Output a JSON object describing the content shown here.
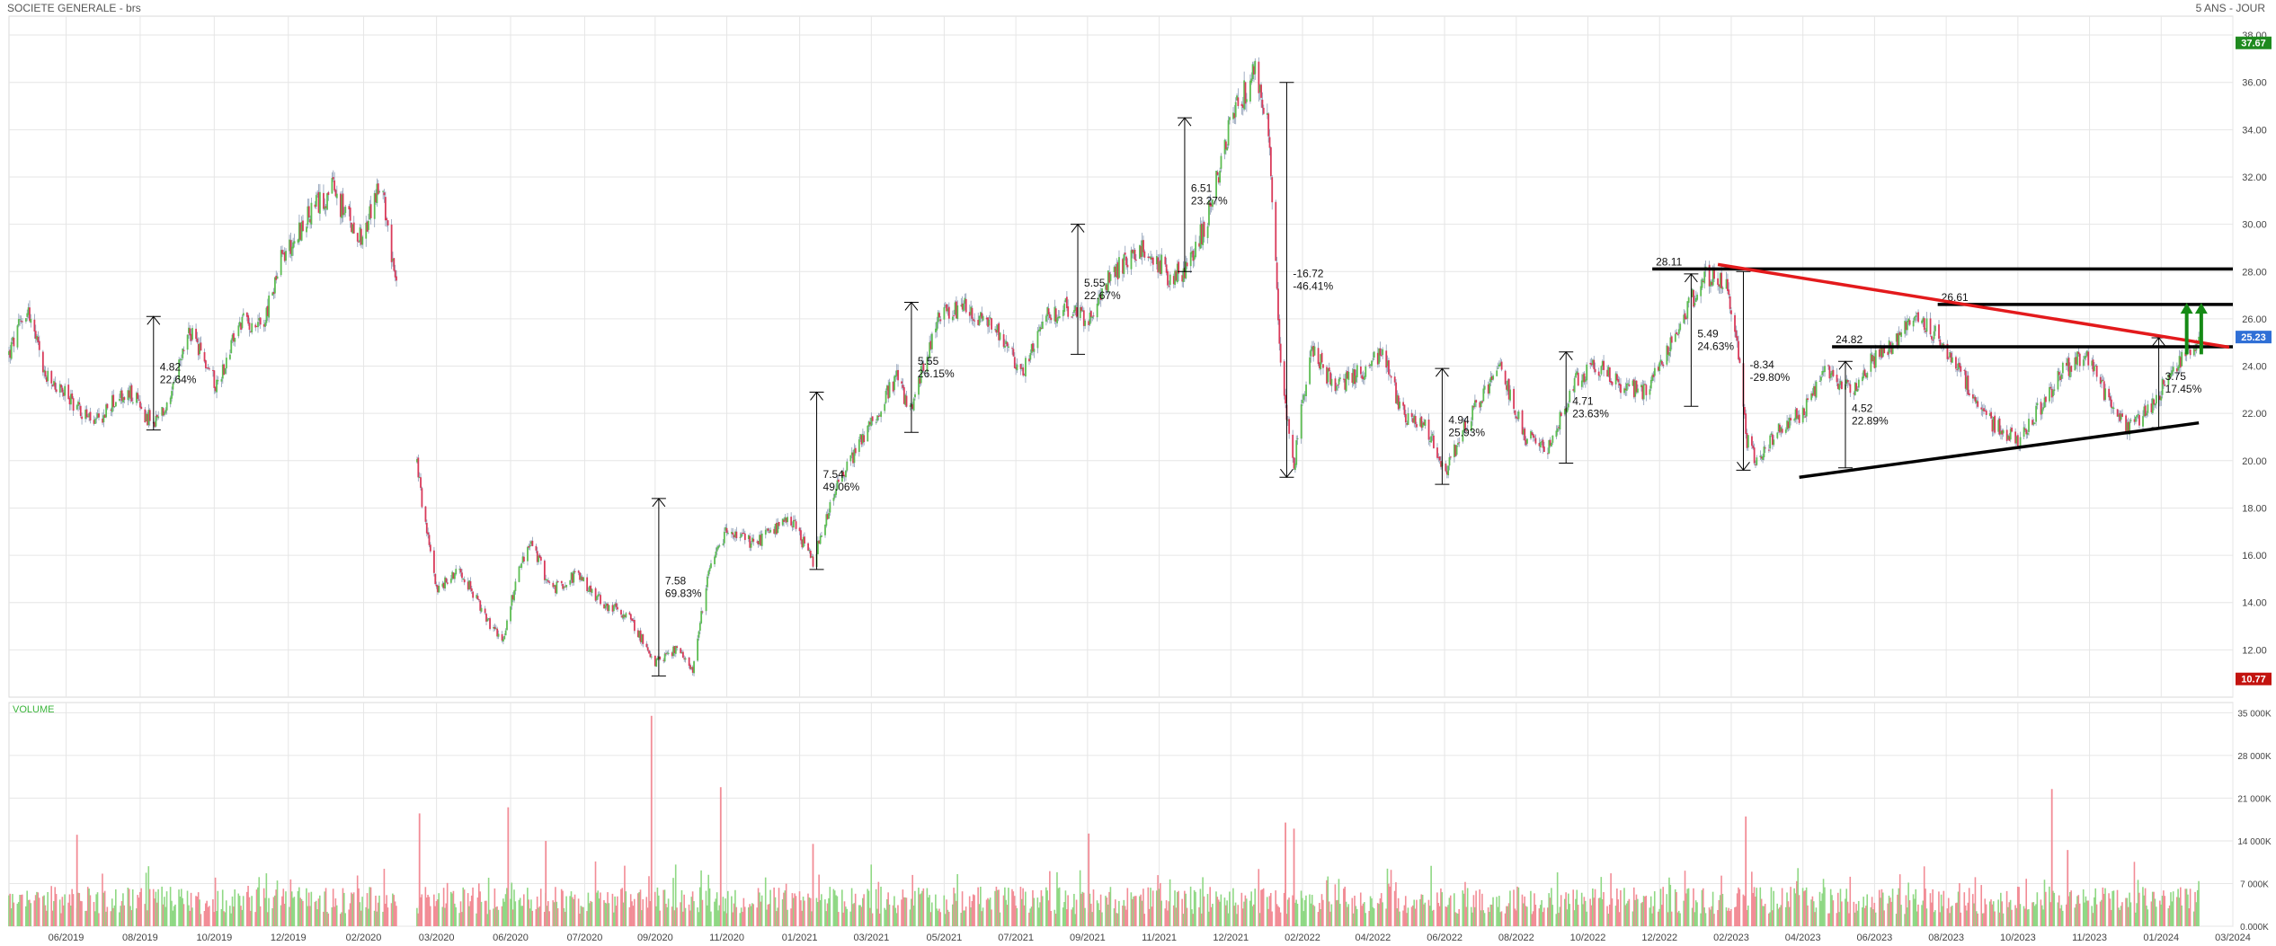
{
  "header": {
    "title": "SOCIETE GENERALE - brs",
    "period": "5 ANS - JOUR"
  },
  "colors": {
    "up": "#5cbd52",
    "down": "#d93a5a",
    "volume_up": "#8fd884",
    "volume_down": "#f28c96",
    "grid": "#e6e6e6",
    "trend_red": "#e31a1c",
    "trend_black": "#000000",
    "last_price_bg": "#2f6fd6",
    "high_bg": "#1f8a1f",
    "low_bg": "#c3130f",
    "arrow_green": "#158a15",
    "volume_label": "#3bb53b"
  },
  "chart_data": [
    {
      "type": "candlestick",
      "title": "SOCIETE GENERALE - brs",
      "period": "5 ANS - JOUR",
      "x_range": [
        "2019-04-15",
        "2024-03-22"
      ],
      "ylim": [
        10,
        38.8
      ],
      "y_ticks": [
        "12.00",
        "14.00",
        "16.00",
        "18.00",
        "20.00",
        "22.00",
        "24.00",
        "26.00",
        "28.00",
        "30.00",
        "32.00",
        "34.00",
        "36.00",
        "38.00"
      ],
      "x_ticks": [
        {
          "date": "2019-06-01",
          "label": "06/2019"
        },
        {
          "date": "2019-08-01",
          "label": "08/2019"
        },
        {
          "date": "2019-10-01",
          "label": "10/2019"
        },
        {
          "date": "2019-12-01",
          "label": "12/2019"
        },
        {
          "date": "2020-02-01",
          "label": "02/2020"
        },
        {
          "date": "2020-04-01",
          "label": "03/2020"
        },
        {
          "date": "2020-06-01",
          "label": "06/2020"
        },
        {
          "date": "2020-08-01",
          "label": "07/2020"
        },
        {
          "date": "2020-09-28",
          "label": "09/2020"
        },
        {
          "date": "2020-11-26",
          "label": "11/2020"
        },
        {
          "date": "2021-01-25",
          "label": "01/2021"
        },
        {
          "date": "2021-03-25",
          "label": "03/2021"
        },
        {
          "date": "2021-05-24",
          "label": "05/2021"
        },
        {
          "date": "2021-07-22",
          "label": "07/2021"
        },
        {
          "date": "2021-09-19",
          "label": "09/2021"
        },
        {
          "date": "2021-11-17",
          "label": "11/2021"
        },
        {
          "date": "2022-01-15",
          "label": "12/2021"
        },
        {
          "date": "2022-03-15",
          "label": "02/2022"
        },
        {
          "date": "2022-05-12",
          "label": "04/2022"
        },
        {
          "date": "2022-07-10",
          "label": "06/2022"
        },
        {
          "date": "2022-09-07",
          "label": "08/2022"
        },
        {
          "date": "2022-11-05",
          "label": "10/2022"
        },
        {
          "date": "2023-01-03",
          "label": "12/2022"
        },
        {
          "date": "2023-03-03",
          "label": "02/2023"
        },
        {
          "date": "2023-05-01",
          "label": "04/2023"
        },
        {
          "date": "2023-06-29",
          "label": "06/2023"
        },
        {
          "date": "2023-08-27",
          "label": "08/2023"
        },
        {
          "date": "2023-10-25",
          "label": "10/2023"
        },
        {
          "date": "2023-12-23",
          "label": "11/2023"
        },
        {
          "date": "2024-02-20",
          "label": "01/2024"
        },
        {
          "date": "2024-04-19",
          "label": "03/2024"
        }
      ],
      "price_path": [
        [
          "2019-04-15",
          24.5
        ],
        [
          "2019-04-30",
          26.5
        ],
        [
          "2019-05-15",
          23.5
        ],
        [
          "2019-06-05",
          22.6
        ],
        [
          "2019-06-25",
          21.5
        ],
        [
          "2019-07-10",
          22.5
        ],
        [
          "2019-07-25",
          22.8
        ],
        [
          "2019-08-12",
          21.5
        ],
        [
          "2019-08-26",
          22.5
        ],
        [
          "2019-09-10",
          25.5
        ],
        [
          "2019-10-03",
          23.2
        ],
        [
          "2019-10-22",
          25.8
        ],
        [
          "2019-11-12",
          26.0
        ],
        [
          "2019-11-25",
          28.5
        ],
        [
          "2019-12-20",
          30.5
        ],
        [
          "2020-01-06",
          31.5
        ],
        [
          "2020-01-22",
          30.0
        ],
        [
          "2020-02-02",
          29.5
        ],
        [
          "2020-02-12",
          31.5
        ],
        [
          "2020-02-20",
          30.5
        ],
        [
          "2020-03-02",
          26.0
        ],
        [
          "2020-03-12",
          21.5
        ],
        [
          "2020-03-22",
          17.5
        ],
        [
          "2020-04-02",
          14.5
        ],
        [
          "2020-04-20",
          15.5
        ],
        [
          "2020-05-10",
          13.5
        ],
        [
          "2020-05-25",
          12.3
        ],
        [
          "2020-06-08",
          15.5
        ],
        [
          "2020-06-18",
          16.5
        ],
        [
          "2020-07-05",
          14.5
        ],
        [
          "2020-07-25",
          15.2
        ],
        [
          "2020-08-15",
          14.0
        ],
        [
          "2020-09-05",
          13.5
        ],
        [
          "2020-09-28",
          11.5
        ],
        [
          "2020-10-15",
          12.0
        ],
        [
          "2020-10-29",
          11.2
        ],
        [
          "2020-11-10",
          15.0
        ],
        [
          "2020-11-25",
          17.0
        ],
        [
          "2020-12-18",
          16.5
        ],
        [
          "2021-01-18",
          17.5
        ],
        [
          "2021-02-05",
          15.7
        ],
        [
          "2021-02-25",
          19.0
        ],
        [
          "2021-03-18",
          21.0
        ],
        [
          "2021-04-15",
          23.5
        ],
        [
          "2021-04-26",
          22.0
        ],
        [
          "2021-05-18",
          26.0
        ],
        [
          "2021-06-12",
          26.5
        ],
        [
          "2021-07-15",
          25.0
        ],
        [
          "2021-07-25",
          23.5
        ],
        [
          "2021-08-15",
          26.0
        ],
        [
          "2021-08-30",
          26.5
        ],
        [
          "2021-09-18",
          26.0
        ],
        [
          "2021-10-05",
          27.5
        ],
        [
          "2021-10-20",
          28.5
        ],
        [
          "2021-11-08",
          29.0
        ],
        [
          "2021-11-25",
          27.8
        ],
        [
          "2021-12-10",
          28.0
        ],
        [
          "2021-12-28",
          30.5
        ],
        [
          "2022-01-15",
          34.5
        ],
        [
          "2022-02-04",
          36.5
        ],
        [
          "2022-02-15",
          34.0
        ],
        [
          "2022-02-25",
          24.0
        ],
        [
          "2022-03-08",
          19.8
        ],
        [
          "2022-03-22",
          25.0
        ],
        [
          "2022-04-10",
          23.0
        ],
        [
          "2022-04-25",
          23.5
        ],
        [
          "2022-05-20",
          24.5
        ],
        [
          "2022-06-05",
          22.0
        ],
        [
          "2022-06-25",
          21.5
        ],
        [
          "2022-07-10",
          19.5
        ],
        [
          "2022-08-01",
          22.0
        ],
        [
          "2022-08-25",
          23.8
        ],
        [
          "2022-09-15",
          21.0
        ],
        [
          "2022-10-05",
          20.5
        ],
        [
          "2022-10-25",
          23.5
        ],
        [
          "2022-11-15",
          24.0
        ],
        [
          "2022-12-05",
          23.0
        ],
        [
          "2022-12-25",
          23.0
        ],
        [
          "2023-01-18",
          25.5
        ],
        [
          "2023-02-08",
          27.8
        ],
        [
          "2023-02-28",
          27.5
        ],
        [
          "2023-03-08",
          25.0
        ],
        [
          "2023-03-15",
          21.0
        ],
        [
          "2023-03-25",
          19.8
        ],
        [
          "2023-04-12",
          21.5
        ],
        [
          "2023-05-01",
          22.0
        ],
        [
          "2023-05-20",
          23.8
        ],
        [
          "2023-06-10",
          23.0
        ],
        [
          "2023-06-28",
          24.3
        ],
        [
          "2023-07-18",
          25.0
        ],
        [
          "2023-08-01",
          26.3
        ],
        [
          "2023-08-15",
          25.5
        ],
        [
          "2023-08-28",
          24.5
        ],
        [
          "2023-09-10",
          23.5
        ],
        [
          "2023-10-05",
          21.5
        ],
        [
          "2023-10-25",
          20.8
        ],
        [
          "2023-11-15",
          22.5
        ],
        [
          "2023-12-01",
          23.8
        ],
        [
          "2023-12-20",
          24.5
        ],
        [
          "2024-01-05",
          22.8
        ],
        [
          "2024-01-22",
          21.4
        ],
        [
          "2024-02-08",
          22.0
        ],
        [
          "2024-02-25",
          23.5
        ],
        [
          "2024-03-10",
          24.3
        ],
        [
          "2024-03-22",
          25.23
        ]
      ],
      "gap": {
        "from": "2020-02-28",
        "to": "2020-03-16"
      },
      "last": {
        "label": "25.23",
        "value": 25.23
      },
      "high": {
        "label": "37.67",
        "value": 37.67
      },
      "low": {
        "label": "10.77",
        "value": 10.77
      },
      "measurements": [
        {
          "date": "2019-08-12",
          "from": 21.3,
          "to": 26.1,
          "abs": "4.82",
          "pct": "22.64%"
        },
        {
          "date": "2020-10-01",
          "from": 10.9,
          "to": 18.4,
          "abs": "7.58",
          "pct": "69.83%"
        },
        {
          "date": "2021-02-08",
          "from": 15.4,
          "to": 22.9,
          "abs": "7.54",
          "pct": "49.06%"
        },
        {
          "date": "2021-04-27",
          "from": 21.2,
          "to": 26.7,
          "abs": "5.55",
          "pct": "26.15%"
        },
        {
          "date": "2021-09-11",
          "from": 24.5,
          "to": 30.0,
          "abs": "5.55",
          "pct": "22.67%"
        },
        {
          "date": "2021-12-08",
          "from": 28.0,
          "to": 34.5,
          "abs": "6.51",
          "pct": "23.27%"
        },
        {
          "date": "2022-03-02",
          "from": 36.0,
          "to": 19.3,
          "abs": "-16.72",
          "pct": "-46.41%"
        },
        {
          "date": "2022-07-08",
          "from": 19.0,
          "to": 23.9,
          "abs": "4.94",
          "pct": "25.93%"
        },
        {
          "date": "2022-10-18",
          "from": 19.9,
          "to": 24.6,
          "abs": "4.71",
          "pct": "23.63%"
        },
        {
          "date": "2023-01-29",
          "from": 22.3,
          "to": 27.9,
          "abs": "5.49",
          "pct": "24.63%"
        },
        {
          "date": "2023-03-13",
          "from": 28.0,
          "to": 19.6,
          "abs": "-8.34",
          "pct": "-29.80%"
        },
        {
          "date": "2023-06-05",
          "from": 19.7,
          "to": 24.2,
          "abs": "4.52",
          "pct": "22.89%"
        },
        {
          "date": "2024-02-18",
          "from": 21.4,
          "to": 25.2,
          "abs": "3.75",
          "pct": "17.45%"
        }
      ],
      "horizontal_lines": [
        {
          "from": "2022-12-28",
          "to": "2024-04-19",
          "value": 28.11,
          "label": "28.11"
        },
        {
          "from": "2023-08-20",
          "to": "2024-04-19",
          "value": 26.61,
          "label": "26.61"
        },
        {
          "from": "2023-05-25",
          "to": "2024-04-19",
          "value": 24.82,
          "label": "24.82"
        }
      ],
      "trendlines": [
        {
          "color": "red",
          "from": [
            "2023-02-20",
            28.3
          ],
          "to": [
            "2024-04-16",
            24.8
          ]
        },
        {
          "color": "black",
          "from": [
            "2023-04-28",
            19.3
          ],
          "to": [
            "2024-03-22",
            21.6
          ]
        }
      ],
      "arrows": [
        {
          "date": "2024-03-12",
          "from": 24.5,
          "to": 26.6
        },
        {
          "date": "2024-03-24",
          "from": 24.5,
          "to": 26.6
        }
      ]
    },
    {
      "type": "bar",
      "title": "VOLUME",
      "ylim": [
        0,
        35500
      ],
      "y_ticks": [
        "0.000K",
        "7 000K",
        "14 000K",
        "21 000K",
        "28 000K",
        "35 000K"
      ],
      "spikes": [
        {
          "date": "2020-09-25",
          "value": 34500
        },
        {
          "date": "2020-11-21",
          "value": 22800
        },
        {
          "date": "2020-05-30",
          "value": 19500
        },
        {
          "date": "2020-03-18",
          "value": 18500
        },
        {
          "date": "2023-11-22",
          "value": 22500
        },
        {
          "date": "2023-03-15",
          "value": 18000
        },
        {
          "date": "2022-03-01",
          "value": 17000
        },
        {
          "date": "2022-03-08",
          "value": 16000
        },
        {
          "date": "2021-09-20",
          "value": 15200
        },
        {
          "date": "2019-06-10",
          "value": 15000
        },
        {
          "date": "2020-06-30",
          "value": 14000
        },
        {
          "date": "2021-02-05",
          "value": 13500
        },
        {
          "date": "2023-12-05",
          "value": 12500
        }
      ]
    }
  ]
}
